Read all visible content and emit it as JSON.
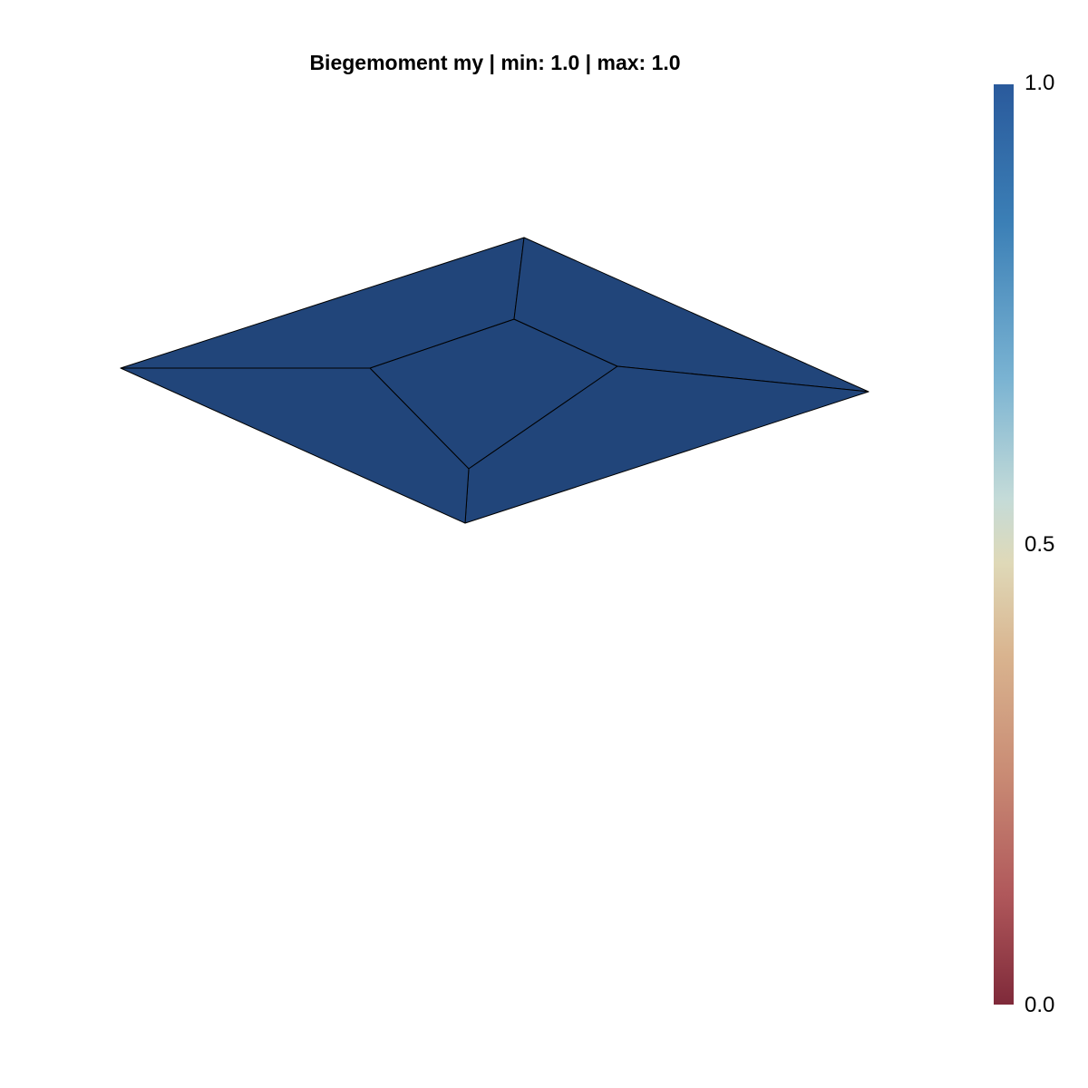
{
  "title": "Biegemoment my | min: 1.0 | max: 1.0",
  "chart_data": {
    "type": "heatmap",
    "title": "Biegemoment my | min: 1.0 | max: 1.0",
    "field": "Biegemoment my",
    "min": 1.0,
    "max": 1.0,
    "elements": [
      {
        "name": "element-inner",
        "value": 1.0
      },
      {
        "name": "element-top-left",
        "value": 1.0
      },
      {
        "name": "element-top-right",
        "value": 1.0
      },
      {
        "name": "element-bottom-right",
        "value": 1.0
      },
      {
        "name": "element-bottom-left",
        "value": 1.0
      }
    ],
    "colorbar": {
      "range": [
        0.0,
        1.0
      ],
      "ticks": [
        "1.0",
        "0.5",
        "0.0"
      ],
      "colors": [
        "#2a5a9c",
        "#dfd9b8",
        "#7f2a3a"
      ]
    },
    "fill_color": "#21457a",
    "edge_color": "#000000"
  }
}
